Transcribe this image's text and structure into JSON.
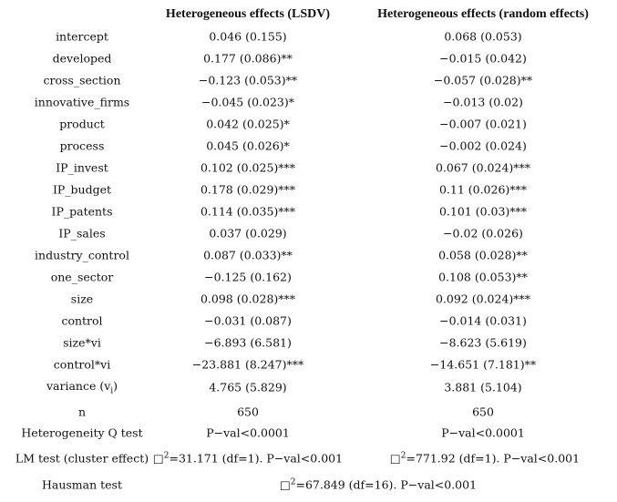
{
  "table": {
    "header": [
      "Heterogeneous effects (LSDV)",
      "Heterogeneous effects (random effects)"
    ],
    "rows": [
      [
        "intercept",
        "0.046 (0.155)",
        "0.068 (0.053)"
      ],
      [
        "developed",
        "0.177 (0.086)**",
        "−0.015 (0.042)"
      ],
      [
        "cross_section",
        "−0.123 (0.053)**",
        "−0.057 (0.028)**"
      ],
      [
        "innovative_firms",
        "−0.045 (0.023)*",
        "−0.013 (0.02)"
      ],
      [
        "product",
        "0.042 (0.025)*",
        "−0.007 (0.021)"
      ],
      [
        "process",
        "0.045 (0.026)*",
        "−0.002 (0.024)"
      ],
      [
        "IP_invest",
        "0.102 (0.025)***",
        "0.067 (0.024)***"
      ],
      [
        "IP_budget",
        "0.178 (0.029)***",
        "0.11 (0.026)***"
      ],
      [
        "IP_patents",
        "0.114 (0.035)***",
        "0.101 (0.03)***"
      ],
      [
        "IP_sales",
        "0.037 (0.029)",
        "−0.02 (0.026)"
      ],
      [
        "industry_control",
        "0.087 (0.033)**",
        "0.058 (0.028)**"
      ],
      [
        "one_sector",
        "−0.125 (0.162)",
        "0.108 (0.053)**"
      ],
      [
        "size",
        "0.098 (0.028)***",
        "0.092 (0.024)***"
      ],
      [
        "control",
        "−0.031 (0.087)",
        "−0.014 (0.031)"
      ],
      [
        "size*vi",
        "−6.893 (6.581)",
        "−8.623 (5.619)"
      ],
      [
        "control*vi",
        "−23.881 (8.247)***",
        "−14.651 (7.181)**"
      ],
      [
        [
          "variance (v",
          {
            "sub": "i"
          },
          ")"
        ],
        "4.765 (5.829)",
        "3.881 (5.104)"
      ],
      [
        "n",
        "650",
        "650"
      ],
      [
        "Heterogeneity Q test",
        "P−val<0.0001",
        "P−val<0.0001"
      ],
      [
        "LM test (cluster effect)",
        [
          "□",
          {
            "sup": "2"
          },
          "=31.171 (df=1). P−val<0.001"
        ],
        [
          "□",
          {
            "sup": "2"
          },
          "=771.92 (df=1). P−val<0.001"
        ]
      ],
      [
        "Hausman test",
        [
          "□",
          {
            "sup": "2"
          },
          "=67.849 (df=16). P−val<0.001"
        ]
      ]
    ]
  }
}
